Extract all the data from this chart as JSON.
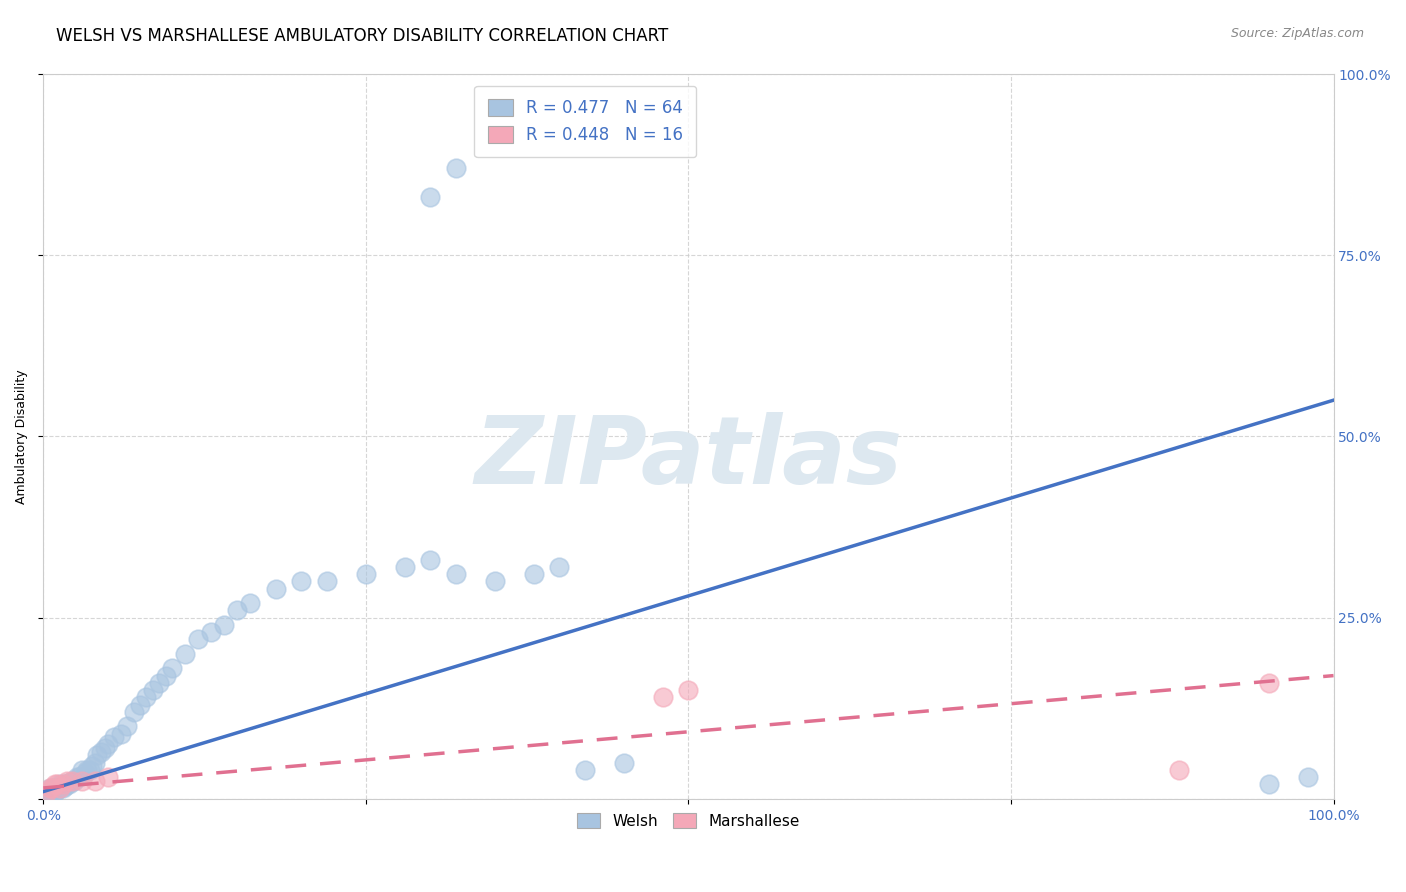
{
  "title": "WELSH VS MARSHALLESE AMBULATORY DISABILITY CORRELATION CHART",
  "source": "Source: ZipAtlas.com",
  "ylabel": "Ambulatory Disability",
  "xlabel": "",
  "xlim": [
    0,
    1.0
  ],
  "ylim": [
    0,
    1.0
  ],
  "welsh_color": "#a8c4e0",
  "marshallese_color": "#f4a8b8",
  "welsh_line_color": "#4472c4",
  "marshallese_line_color": "#e07090",
  "background_color": "#ffffff",
  "watermark_color": "#dde8f0",
  "legend_R_welsh": "R = 0.477",
  "legend_N_welsh": "N = 64",
  "legend_R_marsh": "R = 0.448",
  "legend_N_marsh": "N = 16",
  "welsh_scatter_x": [
    0.003,
    0.004,
    0.005,
    0.006,
    0.007,
    0.008,
    0.009,
    0.01,
    0.011,
    0.012,
    0.013,
    0.014,
    0.015,
    0.016,
    0.017,
    0.018,
    0.019,
    0.02,
    0.022,
    0.024,
    0.026,
    0.028,
    0.03,
    0.032,
    0.034,
    0.036,
    0.038,
    0.04,
    0.042,
    0.045,
    0.048,
    0.05,
    0.055,
    0.06,
    0.065,
    0.07,
    0.075,
    0.08,
    0.085,
    0.09,
    0.095,
    0.1,
    0.11,
    0.12,
    0.13,
    0.14,
    0.15,
    0.16,
    0.18,
    0.2,
    0.22,
    0.25,
    0.28,
    0.3,
    0.32,
    0.35,
    0.38,
    0.4,
    0.42,
    0.45,
    0.3,
    0.32,
    0.95,
    0.98
  ],
  "welsh_scatter_y": [
    0.01,
    0.01,
    0.015,
    0.01,
    0.012,
    0.015,
    0.01,
    0.015,
    0.012,
    0.015,
    0.02,
    0.018,
    0.015,
    0.02,
    0.018,
    0.02,
    0.022,
    0.02,
    0.025,
    0.025,
    0.03,
    0.03,
    0.04,
    0.035,
    0.04,
    0.04,
    0.045,
    0.05,
    0.06,
    0.065,
    0.07,
    0.075,
    0.085,
    0.09,
    0.1,
    0.12,
    0.13,
    0.14,
    0.15,
    0.16,
    0.17,
    0.18,
    0.2,
    0.22,
    0.23,
    0.24,
    0.26,
    0.27,
    0.29,
    0.3,
    0.3,
    0.31,
    0.32,
    0.33,
    0.31,
    0.3,
    0.31,
    0.32,
    0.04,
    0.05,
    0.83,
    0.87,
    0.02,
    0.03
  ],
  "marshallese_scatter_x": [
    0.003,
    0.005,
    0.007,
    0.009,
    0.011,
    0.013,
    0.015,
    0.018,
    0.022,
    0.03,
    0.04,
    0.05,
    0.48,
    0.5,
    0.88,
    0.95
  ],
  "marshallese_scatter_y": [
    0.01,
    0.015,
    0.015,
    0.02,
    0.02,
    0.015,
    0.02,
    0.025,
    0.025,
    0.025,
    0.025,
    0.03,
    0.14,
    0.15,
    0.04,
    0.16
  ],
  "welsh_line_x": [
    0.0,
    1.0
  ],
  "welsh_line_y": [
    0.01,
    0.55
  ],
  "marshallese_line_x": [
    0.0,
    1.0
  ],
  "marshallese_line_y": [
    0.015,
    0.17
  ],
  "grid_color": "#cccccc",
  "title_fontsize": 12,
  "axis_label_fontsize": 9,
  "tick_fontsize": 10,
  "legend_fontsize": 12
}
